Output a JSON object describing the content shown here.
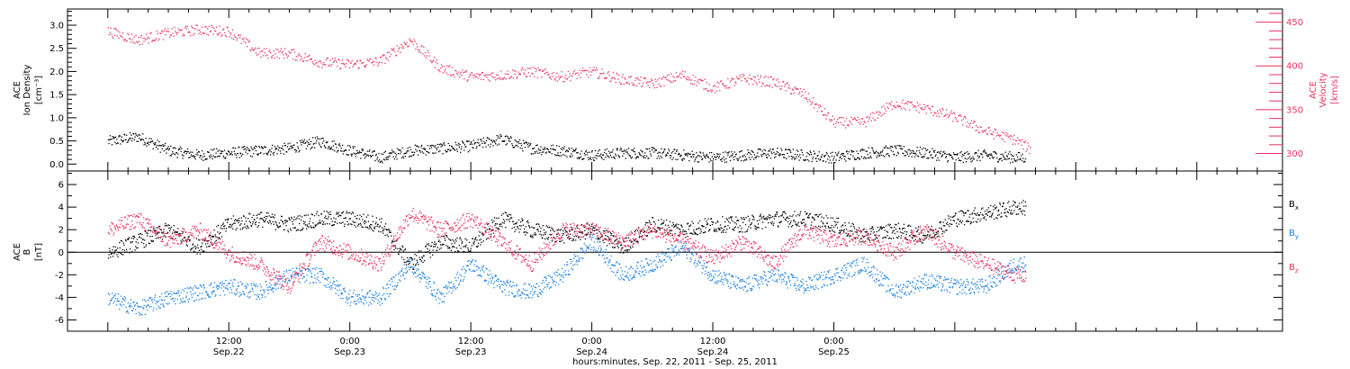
{
  "chart_data": [
    {
      "type": "scatter",
      "title": "",
      "y_left_label_lines": [
        "ACE",
        "Ion Density"
      ],
      "y_left_unit": "[cm⁻³]",
      "y_right_label_lines": [
        "ACE",
        "Velocity"
      ],
      "y_right_unit": "[km/s]",
      "y_left_range": [
        -0.15,
        3.35
      ],
      "y_left_ticks": [
        "0.0",
        "0.5",
        "1.0",
        "1.5",
        "2.0",
        "2.5",
        "3.0"
      ],
      "y_right_range": [
        280,
        465
      ],
      "y_right_ticks": [
        "300",
        "350",
        "400",
        "450"
      ],
      "legend": "none",
      "series": [
        {
          "name": "Ion Density",
          "axis": "left",
          "color": "#000000",
          "x": [
            0,
            3,
            6,
            9,
            12,
            15,
            18,
            21,
            24,
            27,
            30,
            33,
            36,
            39,
            42,
            45,
            48,
            51,
            54,
            57,
            60,
            63,
            66,
            69,
            72,
            75,
            78,
            81,
            84,
            87,
            90
          ],
          "y": [
            0.5,
            0.6,
            0.3,
            0.2,
            0.25,
            0.3,
            0.35,
            0.5,
            0.3,
            0.15,
            0.3,
            0.35,
            0.4,
            0.55,
            0.35,
            0.3,
            0.2,
            0.25,
            0.25,
            0.2,
            0.15,
            0.2,
            0.25,
            0.2,
            0.15,
            0.25,
            0.3,
            0.25,
            0.15,
            0.2,
            0.15
          ]
        },
        {
          "name": "Velocity",
          "axis": "right",
          "color": "#e8335f",
          "x": [
            0,
            3,
            6,
            9,
            12,
            15,
            18,
            21,
            24,
            27,
            30,
            33,
            36,
            39,
            42,
            45,
            48,
            51,
            54,
            57,
            60,
            63,
            66,
            69,
            72,
            75,
            78,
            81,
            84,
            87,
            90,
            91.5
          ],
          "y": [
            440,
            430,
            438,
            442,
            440,
            415,
            415,
            405,
            402,
            406,
            430,
            398,
            388,
            390,
            394,
            388,
            394,
            385,
            380,
            390,
            375,
            386,
            382,
            368,
            336,
            336,
            358,
            352,
            342,
            326,
            316,
            305
          ]
        }
      ]
    },
    {
      "type": "scatter",
      "title": "",
      "y_label_lines": [
        "ACE",
        "B"
      ],
      "y_unit": "[nT]",
      "y_range": [
        -7,
        7.2
      ],
      "y_ticks": [
        "-6",
        "-4",
        "-2",
        "0",
        "2",
        "4",
        "6"
      ],
      "zero_line": true,
      "legend": "right",
      "series": [
        {
          "name": "Bx",
          "color": "#000000",
          "x": [
            0,
            3,
            6,
            9,
            12,
            15,
            18,
            21,
            24,
            27,
            30,
            33,
            36,
            39,
            42,
            45,
            48,
            51,
            54,
            57,
            60,
            63,
            66,
            69,
            72,
            75,
            78,
            81,
            84,
            87,
            90
          ],
          "y": [
            0,
            1,
            2,
            0.5,
            2.5,
            3,
            2.5,
            3,
            3,
            2.5,
            -1,
            1,
            0.5,
            3,
            2,
            1.5,
            2,
            0.5,
            2.5,
            2,
            2.5,
            2.5,
            3,
            3,
            2.5,
            1.5,
            2,
            1.5,
            3,
            3.5,
            4
          ]
        },
        {
          "name": "By",
          "color": "#1a7fe0",
          "x": [
            0,
            3,
            6,
            9,
            12,
            15,
            18,
            21,
            24,
            27,
            30,
            33,
            36,
            39,
            42,
            45,
            48,
            51,
            54,
            57,
            60,
            63,
            66,
            69,
            72,
            75,
            78,
            81,
            84,
            87,
            90
          ],
          "y": [
            -4,
            -5,
            -4,
            -3.5,
            -3,
            -3.5,
            -2,
            -2,
            -4,
            -4,
            -1,
            -4,
            -1,
            -3,
            -3.5,
            -2,
            1,
            -2,
            -1,
            0.5,
            -2,
            -3,
            -2,
            -3,
            -2,
            -1,
            -3.5,
            -2.5,
            -3,
            -3,
            -1
          ]
        },
        {
          "name": "Bz",
          "color": "#e8335f",
          "x": [
            0,
            3,
            6,
            9,
            12,
            15,
            18,
            21,
            24,
            27,
            30,
            33,
            36,
            39,
            42,
            45,
            48,
            51,
            54,
            57,
            60,
            63,
            66,
            69,
            72,
            75,
            78,
            81,
            84,
            87,
            90
          ],
          "y": [
            2,
            3,
            1,
            2,
            0,
            -1,
            -3,
            1,
            0,
            -1,
            3.5,
            2,
            3,
            1,
            -1,
            2,
            2,
            1,
            2,
            1,
            -0.5,
            1,
            -1,
            2,
            1,
            1.5,
            0,
            2,
            0,
            -1,
            -2
          ]
        }
      ],
      "legend_labels": [
        {
          "main": "B",
          "sub": "x",
          "color": "#000000"
        },
        {
          "main": "B",
          "sub": "y",
          "color": "#1a7fe0"
        },
        {
          "main": "B",
          "sub": "z",
          "color": "#e8335f"
        }
      ]
    }
  ],
  "x_axis": {
    "range_hours": [
      -4,
      116.5
    ],
    "ticks": [
      {
        "h": 12,
        "top": "12:00",
        "bottom": "Sep.22"
      },
      {
        "h": 24,
        "top": "0:00",
        "bottom": "Sep.23"
      },
      {
        "h": 36,
        "top": "12:00",
        "bottom": "Sep.23"
      },
      {
        "h": 48,
        "top": "0:00",
        "bottom": "Sep.24"
      },
      {
        "h": 60,
        "top": "12:00",
        "bottom": "Sep.24"
      },
      {
        "h": 72,
        "top": "0:00",
        "bottom": "Sep.25"
      }
    ],
    "label": "hours:minutes, Sep. 22, 2011 - Sep. 25, 2011"
  }
}
